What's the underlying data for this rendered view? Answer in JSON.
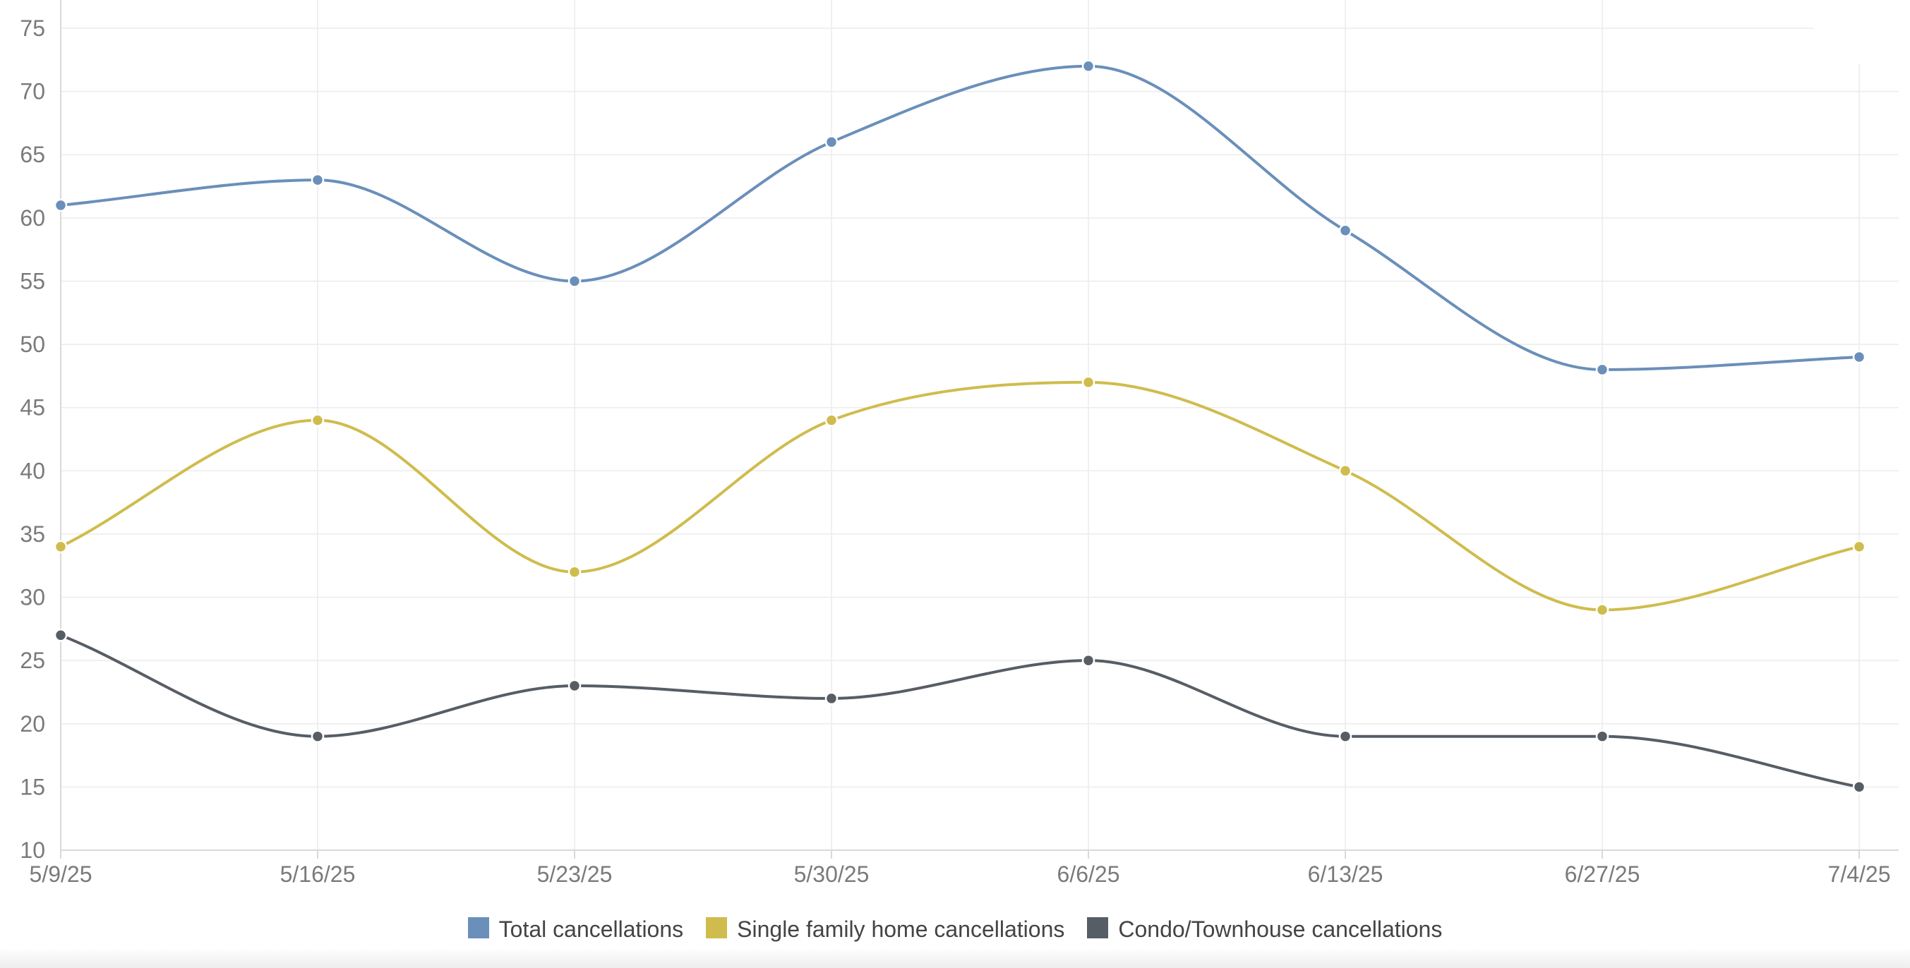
{
  "chart_data": {
    "type": "line",
    "title": "",
    "xlabel": "",
    "ylabel": "",
    "categories": [
      "5/9/25",
      "5/16/25",
      "5/23/25",
      "5/30/25",
      "6/6/25",
      "6/13/25",
      "6/27/25",
      "7/4/25"
    ],
    "yticks": [
      10,
      15,
      20,
      25,
      30,
      35,
      40,
      45,
      50,
      55,
      60,
      65,
      70,
      75
    ],
    "ylim": [
      10,
      75
    ],
    "grid": true,
    "legend_position": "bottom",
    "series": [
      {
        "name": "Total cancellations",
        "color": "#6a8fba",
        "values": [
          61,
          63,
          55,
          66,
          72,
          59,
          48,
          49
        ]
      },
      {
        "name": "Single family home cancellations",
        "color": "#cfbc4d",
        "values": [
          34,
          44,
          32,
          44,
          47,
          40,
          29,
          34
        ]
      },
      {
        "name": "Condo/Townhouse cancellations",
        "color": "#575d65",
        "values": [
          27,
          19,
          23,
          22,
          25,
          19,
          19,
          15
        ]
      }
    ]
  }
}
